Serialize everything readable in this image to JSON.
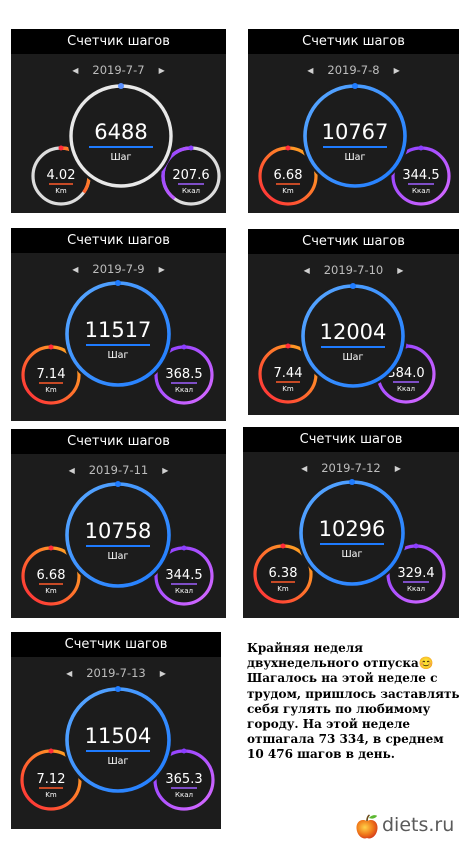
{
  "panels": [
    {
      "title": "Счетчик шагов",
      "date": "2019-7-7",
      "steps": "6488",
      "steps_unit": "Шаг",
      "km": "4.02",
      "km_unit": "Km",
      "kcal": "207.6",
      "kcal_unit": "Ккал"
    },
    {
      "title": "Счетчик шагов",
      "date": "2019-7-8",
      "steps": "10767",
      "steps_unit": "Шаг",
      "km": "6.68",
      "km_unit": "Km",
      "kcal": "344.5",
      "kcal_unit": "Ккал"
    },
    {
      "title": "Счетчик шагов",
      "date": "2019-7-9",
      "steps": "11517",
      "steps_unit": "Шаг",
      "km": "7.14",
      "km_unit": "Km",
      "kcal": "368.5",
      "kcal_unit": "Ккал"
    },
    {
      "title": "Счетчик шагов",
      "date": "2019-7-10",
      "steps": "12004",
      "steps_unit": "Шаг",
      "km": "7.44",
      "km_unit": "Km",
      "kcal": "384.0",
      "kcal_unit": "Ккал"
    },
    {
      "title": "Счетчик шагов",
      "date": "2019-7-11",
      "steps": "10758",
      "steps_unit": "Шаг",
      "km": "6.68",
      "km_unit": "Km",
      "kcal": "344.5",
      "kcal_unit": "Ккал"
    },
    {
      "title": "Счетчик шагов",
      "date": "2019-7-12",
      "steps": "10296",
      "steps_unit": "Шаг",
      "km": "6.38",
      "km_unit": "Km",
      "kcal": "329.4",
      "kcal_unit": "Ккал"
    },
    {
      "title": "Счетчик шагов",
      "date": "2019-7-13",
      "steps": "11504",
      "steps_unit": "Шаг",
      "km": "7.12",
      "km_unit": "Km",
      "kcal": "365.3",
      "kcal_unit": "Ккал"
    }
  ],
  "caption": {
    "line1": "Крайняя неделя",
    "line2": "двухнедельного отпуска😊",
    "line3": "Шагалось на этой неделе с",
    "line4": "трудом, пришлось заставлять",
    "line5": "себя гулять по любимому",
    "line6": "городу. На этой неделе",
    "line7": "отшагала 73 334, в среднем",
    "line8": "10 476 шагов в день."
  },
  "logo": {
    "text": "diets.ru",
    "icon": "apple-icon"
  },
  "colors": {
    "panel_bg": "#1c1c1c",
    "title_bg": "#000000",
    "steps_ring": "#1e7bff",
    "steps_ring_light": "#5aa8ff",
    "steps_ring_incomplete": "#e8e8e8",
    "km_ring_start": "#ff2a3a",
    "km_ring_end": "#ffb020",
    "kcal_ring_start": "#8a3dff",
    "kcal_ring_end": "#d86bff",
    "logo_text": "#5a5a5a"
  }
}
